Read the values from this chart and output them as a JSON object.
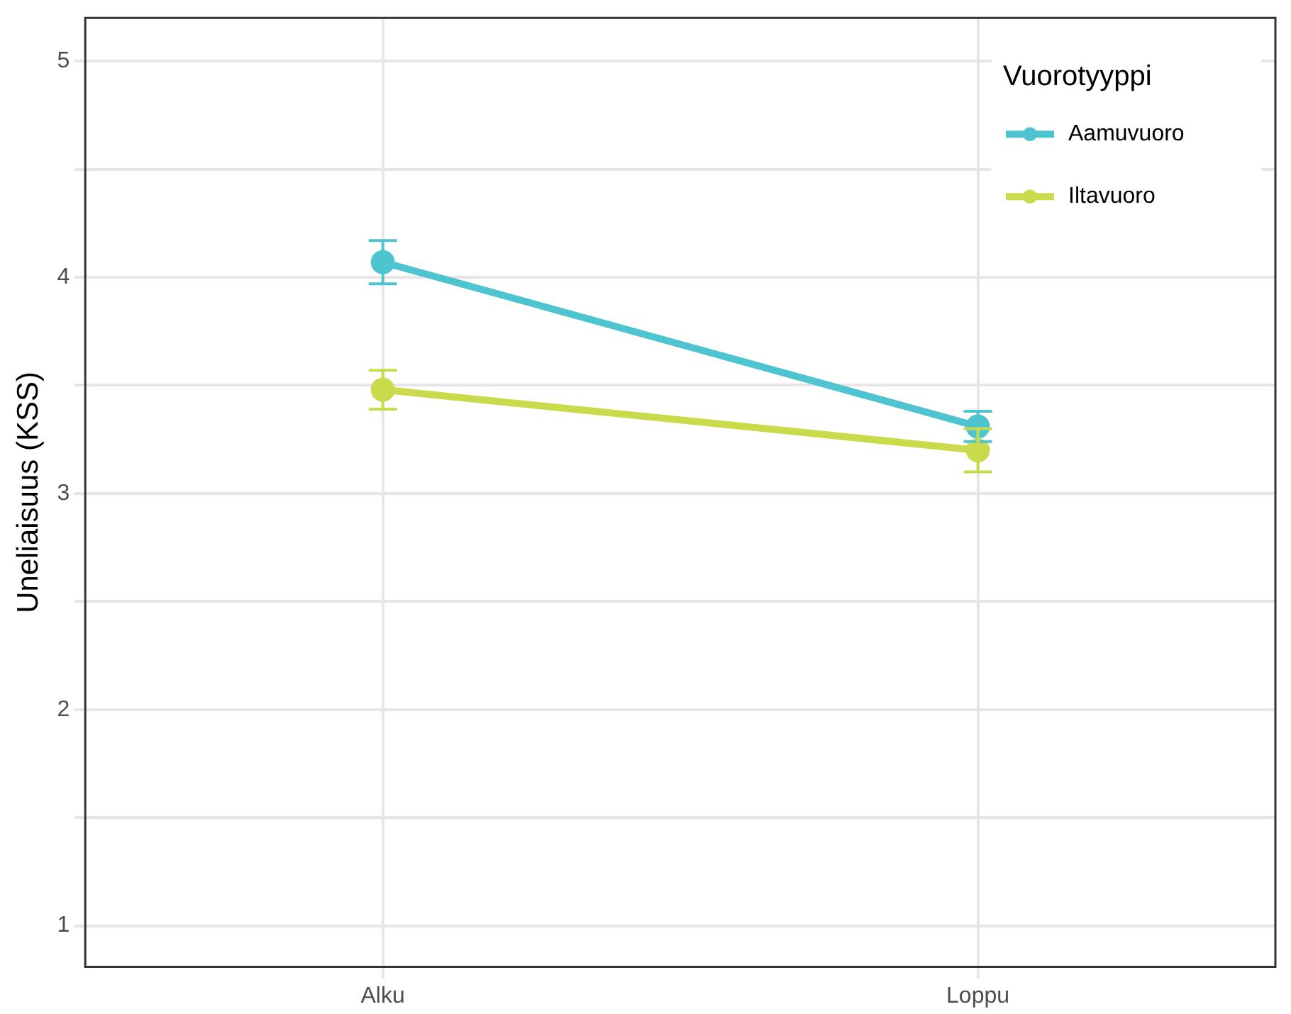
{
  "chart_data": {
    "type": "line",
    "ylabel": "Uneliaisuus (KSS)",
    "legend_title": "Vuorotyyppi",
    "categories": [
      "Alku",
      "Loppu"
    ],
    "series": [
      {
        "name": "Aamuvuoro",
        "color": "#4ec4d0",
        "values": [
          4.07,
          3.31
        ],
        "errors": [
          0.1,
          0.07
        ]
      },
      {
        "name": "Iltavuoro",
        "color": "#c9db4a",
        "values": [
          3.48,
          3.2
        ],
        "errors": [
          0.09,
          0.1
        ]
      }
    ],
    "ylim": [
      0.81,
      5.2
    ],
    "yticks": [
      1,
      {
        "value": 1.5,
        "label": null
      },
      2,
      {
        "value": 2.5,
        "label": null
      },
      3,
      {
        "value": 3.5,
        "label": null
      },
      4,
      {
        "value": 4.5,
        "label": null
      },
      5
    ],
    "grid": true,
    "legend": "top right",
    "marker": "circle",
    "line_style": "solid"
  }
}
